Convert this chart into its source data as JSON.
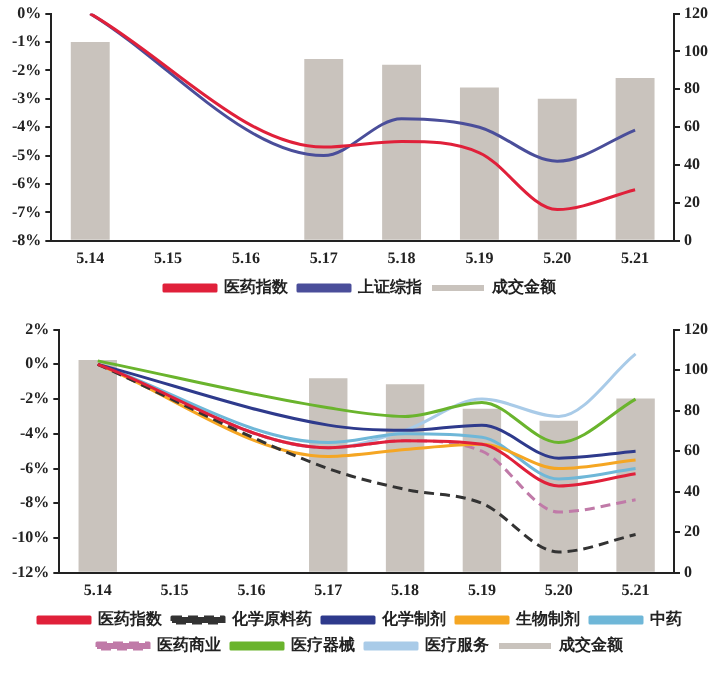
{
  "chart_data": [
    {
      "type": "line",
      "categories": [
        "5.14",
        "5.15",
        "5.16",
        "5.17",
        "5.18",
        "5.19",
        "5.20",
        "5.21"
      ],
      "series": [
        {
          "name": "成交金额",
          "type": "bar",
          "axis": "y2",
          "color": "#c9c3bd",
          "values": [
            105,
            null,
            null,
            96,
            93,
            81,
            75,
            86
          ]
        },
        {
          "name": "医药指数",
          "color": "#e0203a",
          "values": [
            0,
            null,
            null,
            -4.7,
            -4.5,
            -4.9,
            -6.9,
            -6.2
          ]
        },
        {
          "name": "上证综指",
          "color": "#4a4e9a",
          "values": [
            0,
            null,
            null,
            -5.0,
            -3.7,
            -4.0,
            -5.2,
            -4.1
          ]
        }
      ],
      "ylim": [
        -8,
        0
      ],
      "yticks": [
        {
          "value": -8,
          "label": "-8%"
        },
        {
          "value": -7,
          "label": "-7%"
        },
        {
          "value": -6,
          "label": "-6%"
        },
        {
          "value": -5,
          "label": "-5%"
        },
        {
          "value": -4,
          "label": "-4%"
        },
        {
          "value": -3,
          "label": "-3%"
        },
        {
          "value": -2,
          "label": "-2%"
        },
        {
          "value": -1,
          "label": "-1%"
        },
        {
          "value": 0,
          "label": "0%"
        }
      ],
      "y2lim": [
        0,
        120
      ],
      "y2ticks": [
        0,
        20,
        40,
        60,
        80,
        100,
        120
      ],
      "grid": false,
      "legend": "bottom",
      "marker": "none"
    },
    {
      "type": "line",
      "categories": [
        "5.14",
        "5.15",
        "5.16",
        "5.17",
        "5.18",
        "5.19",
        "5.20",
        "5.21"
      ],
      "series": [
        {
          "name": "成交金额",
          "type": "bar",
          "axis": "y2",
          "color": "#c9c3bd",
          "values": [
            105,
            null,
            null,
            96,
            93,
            81,
            75,
            86
          ]
        },
        {
          "name": "医药指数",
          "color": "#e0203a",
          "values": [
            0,
            null,
            null,
            -4.8,
            -4.4,
            -4.6,
            -7.0,
            -6.3
          ]
        },
        {
          "name": "化学原料药",
          "color": "#333333",
          "line_style": "dashed",
          "values": [
            0,
            null,
            null,
            -6.0,
            -7.2,
            -8.0,
            -10.8,
            -9.8
          ]
        },
        {
          "name": "化学制剂",
          "color": "#2e3a8c",
          "values": [
            0,
            null,
            null,
            -3.5,
            -3.8,
            -3.5,
            -5.4,
            -5.0
          ]
        },
        {
          "name": "生物制剂",
          "color": "#f5a623",
          "values": [
            0,
            null,
            null,
            -5.3,
            -4.9,
            -4.6,
            -6.0,
            -5.5
          ]
        },
        {
          "name": "中药",
          "color": "#6fb7d8",
          "values": [
            0,
            null,
            null,
            -4.5,
            -4.0,
            -4.2,
            -6.6,
            -6.0
          ]
        },
        {
          "name": "医药商业",
          "color": "#c07aa8",
          "line_style": "dashed",
          "values": [
            0,
            null,
            null,
            -4.8,
            -4.4,
            -5.0,
            -8.5,
            -7.8
          ]
        },
        {
          "name": "医疗器械",
          "color": "#6ab42d",
          "values": [
            0.2,
            null,
            null,
            -2.5,
            -3.0,
            -2.2,
            -4.5,
            -2.0
          ]
        },
        {
          "name": "医疗服务",
          "color": "#a9cbe8",
          "values": [
            0,
            null,
            null,
            -4.8,
            -3.8,
            -2.0,
            -3.0,
            0.6
          ]
        }
      ],
      "ylim": [
        -12,
        2
      ],
      "yticks": [
        {
          "value": -12,
          "label": "-12%"
        },
        {
          "value": -10,
          "label": "-10%"
        },
        {
          "value": -8,
          "label": "-8%"
        },
        {
          "value": -6,
          "label": "-6%"
        },
        {
          "value": -4,
          "label": "-4%"
        },
        {
          "value": -2,
          "label": "-2%"
        },
        {
          "value": 0,
          "label": "0%"
        },
        {
          "value": 2,
          "label": "2%"
        }
      ],
      "y2lim": [
        0,
        120
      ],
      "y2ticks": [
        0,
        20,
        40,
        60,
        80,
        100,
        120
      ],
      "grid": false,
      "legend": "bottom",
      "marker": "none"
    }
  ]
}
